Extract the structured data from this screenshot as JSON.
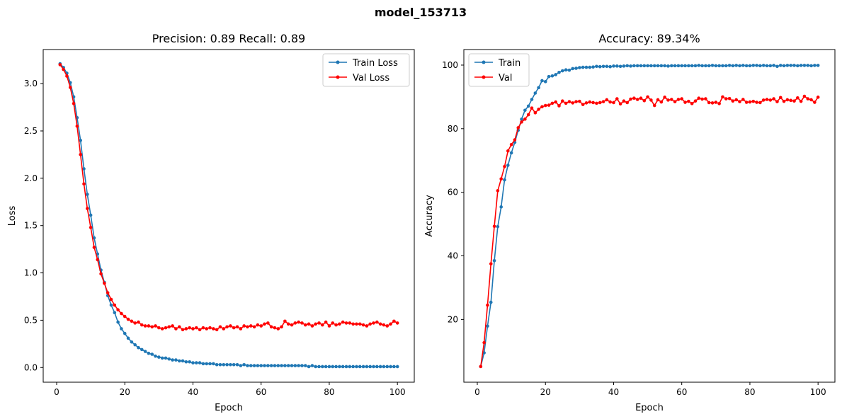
{
  "figure": {
    "suptitle": "model_153713"
  },
  "chart_data": [
    {
      "type": "line",
      "title": "Precision: 0.89 Recall: 0.89",
      "xlabel": "Epoch",
      "ylabel": "Loss",
      "xlim": [
        -3.95,
        104.95
      ],
      "ylim": [
        -0.155,
        3.36
      ],
      "xticks": [
        0,
        20,
        40,
        60,
        80,
        100
      ],
      "yticks": [
        0.0,
        0.5,
        1.0,
        1.5,
        2.0,
        2.5,
        3.0
      ],
      "ytick_labels": [
        "0.0",
        "0.5",
        "1.0",
        "1.5",
        "2.0",
        "2.5",
        "3.0"
      ],
      "legend_position": "upper right",
      "grid": false,
      "series": [
        {
          "name": "Train Loss",
          "color": "#1f77b4",
          "x": [
            1,
            2,
            3,
            4,
            5,
            6,
            7,
            8,
            9,
            10,
            11,
            12,
            13,
            14,
            15,
            16,
            17,
            18,
            19,
            20,
            21,
            22,
            23,
            24,
            25,
            26,
            27,
            28,
            29,
            30,
            31,
            32,
            33,
            34,
            35,
            36,
            37,
            38,
            39,
            40,
            41,
            42,
            43,
            44,
            45,
            46,
            47,
            48,
            49,
            50,
            51,
            52,
            53,
            54,
            55,
            56,
            57,
            58,
            59,
            60,
            61,
            62,
            63,
            64,
            65,
            66,
            67,
            68,
            69,
            70,
            71,
            72,
            73,
            74,
            75,
            76,
            77,
            78,
            79,
            80,
            81,
            82,
            83,
            84,
            85,
            86,
            87,
            88,
            89,
            90,
            91,
            92,
            93,
            94,
            95,
            96,
            97,
            98,
            99,
            100
          ],
          "y": [
            3.21,
            3.17,
            3.11,
            3.01,
            2.86,
            2.64,
            2.4,
            2.1,
            1.83,
            1.61,
            1.37,
            1.2,
            1.03,
            0.9,
            0.76,
            0.66,
            0.58,
            0.48,
            0.41,
            0.36,
            0.31,
            0.27,
            0.24,
            0.21,
            0.19,
            0.17,
            0.15,
            0.14,
            0.12,
            0.11,
            0.1,
            0.1,
            0.09,
            0.08,
            0.08,
            0.07,
            0.07,
            0.06,
            0.06,
            0.05,
            0.05,
            0.05,
            0.04,
            0.04,
            0.04,
            0.04,
            0.03,
            0.03,
            0.03,
            0.03,
            0.03,
            0.03,
            0.03,
            0.02,
            0.03,
            0.02,
            0.02,
            0.02,
            0.02,
            0.02,
            0.02,
            0.02,
            0.02,
            0.02,
            0.02,
            0.02,
            0.02,
            0.02,
            0.02,
            0.02,
            0.02,
            0.02,
            0.02,
            0.01,
            0.02,
            0.01,
            0.01,
            0.01,
            0.01,
            0.01,
            0.01,
            0.01,
            0.01,
            0.01,
            0.01,
            0.01,
            0.01,
            0.01,
            0.01,
            0.01,
            0.01,
            0.01,
            0.01,
            0.01,
            0.01,
            0.01,
            0.01,
            0.01,
            0.01,
            0.01
          ]
        },
        {
          "name": "Val Loss",
          "color": "#ff0000",
          "x": [
            1,
            2,
            3,
            4,
            5,
            6,
            7,
            8,
            9,
            10,
            11,
            12,
            13,
            14,
            15,
            16,
            17,
            18,
            19,
            20,
            21,
            22,
            23,
            24,
            25,
            26,
            27,
            28,
            29,
            30,
            31,
            32,
            33,
            34,
            35,
            36,
            37,
            38,
            39,
            40,
            41,
            42,
            43,
            44,
            45,
            46,
            47,
            48,
            49,
            50,
            51,
            52,
            53,
            54,
            55,
            56,
            57,
            58,
            59,
            60,
            61,
            62,
            63,
            64,
            65,
            66,
            67,
            68,
            69,
            70,
            71,
            72,
            73,
            74,
            75,
            76,
            77,
            78,
            79,
            80,
            81,
            82,
            83,
            84,
            85,
            86,
            87,
            88,
            89,
            90,
            91,
            92,
            93,
            94,
            95,
            96,
            97,
            98,
            99,
            100
          ],
          "y": [
            3.2,
            3.15,
            3.08,
            2.96,
            2.79,
            2.55,
            2.25,
            1.94,
            1.68,
            1.48,
            1.27,
            1.14,
            0.99,
            0.89,
            0.79,
            0.72,
            0.66,
            0.61,
            0.57,
            0.54,
            0.51,
            0.49,
            0.47,
            0.48,
            0.45,
            0.44,
            0.44,
            0.43,
            0.44,
            0.42,
            0.41,
            0.42,
            0.43,
            0.44,
            0.41,
            0.43,
            0.4,
            0.41,
            0.42,
            0.41,
            0.42,
            0.4,
            0.42,
            0.41,
            0.42,
            0.41,
            0.4,
            0.43,
            0.41,
            0.43,
            0.44,
            0.42,
            0.43,
            0.41,
            0.44,
            0.43,
            0.44,
            0.43,
            0.45,
            0.44,
            0.46,
            0.47,
            0.43,
            0.42,
            0.41,
            0.43,
            0.49,
            0.46,
            0.45,
            0.47,
            0.48,
            0.47,
            0.45,
            0.46,
            0.44,
            0.46,
            0.47,
            0.45,
            0.48,
            0.44,
            0.47,
            0.45,
            0.46,
            0.48,
            0.47,
            0.47,
            0.46,
            0.46,
            0.46,
            0.45,
            0.44,
            0.46,
            0.47,
            0.48,
            0.46,
            0.45,
            0.44,
            0.46,
            0.49,
            0.47
          ]
        }
      ]
    },
    {
      "type": "line",
      "title": "Accuracy: 89.34%",
      "xlabel": "Epoch",
      "ylabel": "Accuracy",
      "xlim": [
        -3.95,
        104.95
      ],
      "ylim": [
        0.27,
        104.89
      ],
      "xticks": [
        0,
        20,
        40,
        60,
        80,
        100
      ],
      "yticks": [
        20,
        40,
        60,
        80,
        100
      ],
      "ytick_labels": [
        "20",
        "40",
        "60",
        "80",
        "100"
      ],
      "legend_position": "upper left",
      "grid": false,
      "series": [
        {
          "name": "Train",
          "color": "#1f77b4",
          "x": [
            1,
            2,
            3,
            4,
            5,
            6,
            7,
            8,
            9,
            10,
            11,
            12,
            13,
            14,
            15,
            16,
            17,
            18,
            19,
            20,
            21,
            22,
            23,
            24,
            25,
            26,
            27,
            28,
            29,
            30,
            31,
            32,
            33,
            34,
            35,
            36,
            37,
            38,
            39,
            40,
            41,
            42,
            43,
            44,
            45,
            46,
            47,
            48,
            49,
            50,
            51,
            52,
            53,
            54,
            55,
            56,
            57,
            58,
            59,
            60,
            61,
            62,
            63,
            64,
            65,
            66,
            67,
            68,
            69,
            70,
            71,
            72,
            73,
            74,
            75,
            76,
            77,
            78,
            79,
            80,
            81,
            82,
            83,
            84,
            85,
            86,
            87,
            88,
            89,
            90,
            91,
            92,
            93,
            94,
            95,
            96,
            97,
            98,
            99,
            100
          ],
          "y": [
            5.2,
            9.5,
            17.9,
            25.4,
            38.5,
            49.2,
            55.4,
            63.9,
            68.5,
            72.4,
            75.7,
            79.5,
            83.0,
            85.8,
            87.1,
            89.2,
            91.2,
            92.9,
            95.1,
            94.8,
            96.4,
            96.6,
            97.0,
            97.7,
            98.2,
            98.5,
            98.4,
            98.9,
            99.0,
            99.2,
            99.3,
            99.3,
            99.3,
            99.4,
            99.6,
            99.5,
            99.6,
            99.6,
            99.5,
            99.7,
            99.7,
            99.6,
            99.7,
            99.8,
            99.7,
            99.8,
            99.8,
            99.8,
            99.8,
            99.8,
            99.8,
            99.8,
            99.8,
            99.8,
            99.8,
            99.7,
            99.8,
            99.8,
            99.8,
            99.8,
            99.8,
            99.8,
            99.8,
            99.8,
            99.9,
            99.8,
            99.8,
            99.8,
            99.9,
            99.8,
            99.8,
            99.8,
            99.8,
            99.9,
            99.8,
            99.9,
            99.8,
            99.9,
            99.8,
            99.8,
            99.9,
            99.9,
            99.8,
            99.9,
            99.8,
            99.8,
            99.9,
            99.6,
            99.9,
            99.8,
            99.9,
            99.9,
            99.9,
            99.8,
            99.9,
            99.9,
            99.9,
            99.8,
            99.9,
            99.9
          ]
        },
        {
          "name": "Val",
          "color": "#ff0000",
          "x": [
            1,
            2,
            3,
            4,
            5,
            6,
            7,
            8,
            9,
            10,
            11,
            12,
            13,
            14,
            15,
            16,
            17,
            18,
            19,
            20,
            21,
            22,
            23,
            24,
            25,
            26,
            27,
            28,
            29,
            30,
            31,
            32,
            33,
            34,
            35,
            36,
            37,
            38,
            39,
            40,
            41,
            42,
            43,
            44,
            45,
            46,
            47,
            48,
            49,
            50,
            51,
            52,
            53,
            54,
            55,
            56,
            57,
            58,
            59,
            60,
            61,
            62,
            63,
            64,
            65,
            66,
            67,
            68,
            69,
            70,
            71,
            72,
            73,
            74,
            75,
            76,
            77,
            78,
            79,
            80,
            81,
            82,
            83,
            84,
            85,
            86,
            87,
            88,
            89,
            90,
            91,
            92,
            93,
            94,
            95,
            96,
            97,
            98,
            99,
            100
          ],
          "y": [
            5.2,
            12.7,
            24.5,
            37.5,
            49.3,
            60.5,
            64.2,
            68.1,
            73.0,
            75.0,
            76.5,
            80.3,
            82.1,
            83.0,
            84.4,
            86.5,
            85.0,
            86.1,
            86.9,
            87.3,
            87.4,
            88.0,
            88.4,
            87.2,
            88.7,
            88.0,
            88.5,
            88.1,
            88.5,
            88.6,
            87.6,
            88.1,
            88.4,
            88.2,
            88.0,
            88.2,
            88.5,
            89.1,
            88.4,
            88.2,
            89.4,
            87.8,
            88.7,
            88.2,
            89.3,
            89.6,
            89.2,
            89.6,
            88.8,
            90.0,
            89.0,
            87.3,
            89.1,
            88.4,
            89.9,
            89.0,
            89.2,
            88.5,
            89.2,
            89.4,
            88.3,
            88.6,
            87.9,
            88.7,
            89.6,
            89.3,
            89.4,
            88.2,
            88.1,
            88.3,
            87.9,
            90.0,
            89.4,
            89.5,
            88.7,
            89.1,
            88.5,
            89.2,
            88.3,
            88.4,
            88.6,
            88.3,
            88.2,
            89.0,
            89.2,
            89.0,
            89.4,
            88.5,
            89.8,
            88.6,
            89.1,
            88.9,
            88.7,
            89.7,
            88.6,
            90.2,
            89.4,
            89.1,
            88.3,
            89.9
          ]
        }
      ]
    }
  ]
}
